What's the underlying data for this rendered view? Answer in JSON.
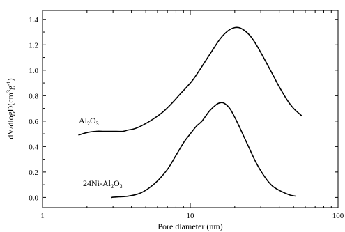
{
  "chart_data": {
    "type": "line",
    "xlabel": "Pore diameter (nm)",
    "ylabel": "dV/dlogD(cm³g⁻¹)",
    "x_scale": "log",
    "xlim": [
      1,
      100
    ],
    "ylim": [
      -0.08,
      1.47
    ],
    "x_ticks": [
      1,
      10,
      100
    ],
    "x_tick_labels": [
      "1",
      "10",
      "100"
    ],
    "y_ticks": [
      0.0,
      0.2,
      0.4,
      0.6,
      0.8,
      1.0,
      1.2,
      1.4
    ],
    "y_tick_labels": [
      "0.0",
      "0.2",
      "0.4",
      "0.6",
      "0.8",
      "1.0",
      "1.2",
      "1.4"
    ],
    "grid": false,
    "legend": "none",
    "series": [
      {
        "name": "Al2O3",
        "x": [
          1.75,
          2.0,
          2.3,
          2.6,
          3.0,
          3.5,
          3.8,
          4.2,
          4.8,
          5.5,
          6.5,
          7.5,
          8.5,
          9.5,
          10.5,
          12,
          14,
          16,
          18,
          20,
          22,
          25,
          28,
          32,
          36,
          40,
          45,
          50,
          57
        ],
        "y": [
          0.49,
          0.51,
          0.52,
          0.52,
          0.52,
          0.52,
          0.53,
          0.54,
          0.57,
          0.61,
          0.67,
          0.74,
          0.81,
          0.87,
          0.93,
          1.03,
          1.15,
          1.25,
          1.31,
          1.335,
          1.33,
          1.28,
          1.2,
          1.08,
          0.97,
          0.87,
          0.77,
          0.7,
          0.64
        ]
      },
      {
        "name": "24Ni-Al2O3",
        "x": [
          2.9,
          3.3,
          3.8,
          4.5,
          5.2,
          6.0,
          7.0,
          8.0,
          9.0,
          10.0,
          11.0,
          12.0,
          13.5,
          15.0,
          16.0,
          17.0,
          18.5,
          20.0,
          22.0,
          25.0,
          28.0,
          32.0,
          36.0,
          41.0,
          47.0,
          52.0
        ],
        "y": [
          0.0,
          0.005,
          0.01,
          0.03,
          0.07,
          0.13,
          0.22,
          0.33,
          0.43,
          0.5,
          0.56,
          0.6,
          0.68,
          0.73,
          0.745,
          0.74,
          0.7,
          0.63,
          0.53,
          0.39,
          0.27,
          0.16,
          0.09,
          0.05,
          0.02,
          0.01
        ]
      }
    ],
    "annotations": [
      {
        "label_main": "Al",
        "sub1": "2",
        "mid": "O",
        "sub2": "3",
        "tail": ""
      },
      {
        "label_main": "24Ni-Al",
        "sub1": "2",
        "mid": "O",
        "sub2": "3",
        "tail": ""
      }
    ],
    "ylabel_parts": {
      "a": "dV/dlogD(cm",
      "sup1": "3",
      "b": "g",
      "sup2": "-1",
      "c": ")"
    }
  }
}
